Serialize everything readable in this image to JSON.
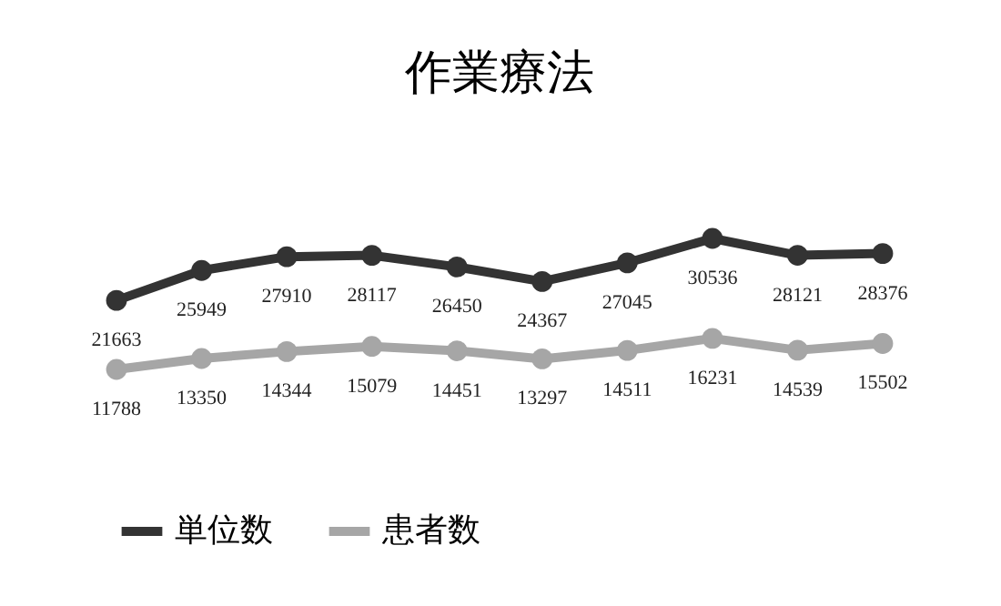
{
  "chart_data": {
    "type": "line",
    "title": "作業療法",
    "categories": [
      null,
      null,
      null,
      null,
      null,
      null,
      null,
      null,
      null,
      null
    ],
    "series": [
      {
        "name": "単位数",
        "color": "#333333",
        "values": [
          21663,
          25949,
          27910,
          28117,
          26450,
          24367,
          27045,
          30536,
          28121,
          28376
        ]
      },
      {
        "name": "患者数",
        "color": "#a6a6a6",
        "values": [
          11788,
          13350,
          14344,
          15079,
          14451,
          13297,
          14511,
          16231,
          14539,
          15502
        ]
      }
    ],
    "data_labels": true,
    "legend": "bottom",
    "marker": "circle",
    "tick_labels": false
  }
}
